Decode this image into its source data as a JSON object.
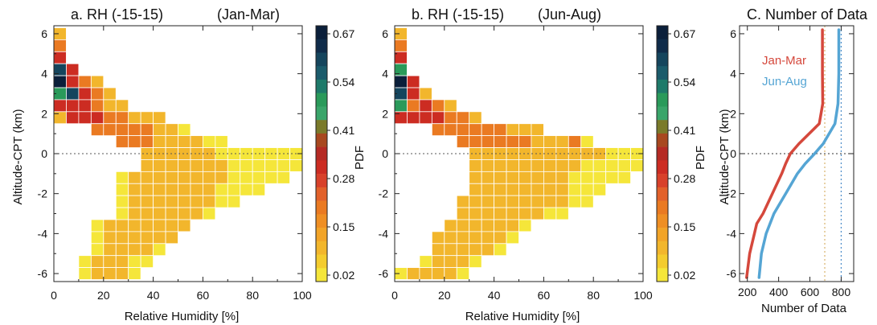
{
  "chart_data": [
    {
      "type": "heatmap",
      "title": "a. RH (-15-15)",
      "subtitle": "(Jan-Mar)",
      "xlabel": "Relative Humidity [%]",
      "ylabel": "Altitude-CPT (km)",
      "colorbar_label": "PDF",
      "xlim": [
        0,
        100
      ],
      "ylim": [
        -6.4,
        6.4
      ],
      "x_ticks": [
        0,
        20,
        40,
        60,
        80,
        100
      ],
      "y_ticks": [
        -6,
        -4,
        -2,
        0,
        2,
        4,
        6
      ],
      "reference_line": {
        "y": 0,
        "style": "dotted"
      },
      "bin_width_x": 5,
      "bin_height_y": 0.6,
      "row_y_values": [
        6.0,
        5.4,
        4.8,
        4.2,
        3.6,
        3.0,
        2.4,
        1.8,
        1.2,
        0.6,
        0.0,
        -0.6,
        -1.2,
        -1.8,
        -2.4,
        -3.0,
        -3.6,
        -4.2,
        -4.8,
        -5.4,
        -6.0
      ],
      "row_start_bin": [
        0,
        0,
        0,
        0,
        0,
        0,
        0,
        0,
        3,
        5,
        7,
        7,
        5,
        5,
        5,
        5,
        3,
        3,
        3,
        2,
        2
      ],
      "cells": [
        "B",
        "C",
        "D",
        "HD",
        "IDCB",
        "GHDCB",
        "DDDCBB",
        "BDDDCCBBB",
        "CCCCCBBA",
        "CCCBBBBAA",
        "BBBBBBAAAAAAA",
        "BBBBBBBAAAAAA",
        "ABBBBBBBBAAAAA",
        "ABBBBBBBAAAA",
        "ABBBBBBBAA",
        "ABBBBBBA",
        "ABBBBBBB",
        "ABBBBBB",
        "ABBBBA",
        "ABBBAA",
        "ABBBA"
      ],
      "color_levels": {
        "A": "#f5e63a",
        "B": "#f2b62c",
        "C": "#ea7a22",
        "D": "#cc2c22",
        "E": "#a8481f",
        "F": "#7a7a2a",
        "G": "#2a9a5a",
        "H": "#15455d",
        "I": "#0b1f3a"
      }
    },
    {
      "type": "heatmap",
      "title": "b. RH (-15-15)",
      "subtitle": "(Jun-Aug)",
      "xlabel": "Relative Humidity [%]",
      "ylabel": "",
      "colorbar_label": "PDF",
      "xlim": [
        0,
        100
      ],
      "ylim": [
        -6.4,
        6.4
      ],
      "x_ticks": [
        0,
        20,
        40,
        60,
        80,
        100
      ],
      "y_ticks": [
        -6,
        -4,
        -2,
        0,
        2,
        4,
        6
      ],
      "reference_line": {
        "y": 0,
        "style": "dotted"
      },
      "bin_width_x": 5,
      "bin_height_y": 0.6,
      "row_y_values": [
        6.0,
        5.4,
        4.8,
        4.2,
        3.6,
        3.0,
        2.4,
        1.8,
        1.2,
        0.6,
        0.0,
        -0.6,
        -1.2,
        -1.8,
        -2.4,
        -3.0,
        -3.6,
        -4.2,
        -4.8,
        -5.4,
        -6.0
      ],
      "row_start_bin": [
        0,
        0,
        0,
        0,
        0,
        0,
        0,
        0,
        3,
        5,
        6,
        6,
        6,
        6,
        5,
        5,
        4,
        3,
        3,
        2,
        0
      ],
      "cells": [
        "B",
        "C",
        "D",
        "G",
        "ID",
        "HDB",
        "GCDCB",
        "DDDDCCB",
        "CCCCCCBBB",
        "CCCCCCBBBCA",
        "BBBBBBBBBBBAAA",
        "BBBBBBBBBAAAAA",
        "BBBBBBBBAAAAA",
        "BBBBBBBBAAA",
        "BBBBBBBBBAA",
        "BBBBBBBAA",
        "BBBBBBA",
        "BBBBBBA",
        "BBBBBA",
        "ABBBA",
        "ABBBBA"
      ],
      "color_levels": {
        "A": "#f5e63a",
        "B": "#f2b62c",
        "C": "#ea7a22",
        "D": "#cc2c22",
        "E": "#a8481f",
        "F": "#7a7a2a",
        "G": "#2a9a5a",
        "H": "#15455d",
        "I": "#0b1f3a"
      }
    },
    {
      "type": "line",
      "title": "C. Number of Data",
      "xlabel": "Number of Data",
      "ylabel": "Altitude-CPT (km)",
      "xlim": [
        150,
        880
      ],
      "ylim": [
        -6.4,
        6.4
      ],
      "x_ticks": [
        200,
        400,
        600,
        800
      ],
      "y_ticks": [
        -6,
        -4,
        -2,
        0,
        2,
        4,
        6
      ],
      "reference_line": {
        "y": 0,
        "style": "dotted"
      },
      "vertical_reference_lines": [
        {
          "x": 695,
          "color": "#d9b36a"
        },
        {
          "x": 800,
          "color": "#4a8cc9"
        }
      ],
      "series": [
        {
          "name": "Jan-Mar",
          "color": "#d5483c",
          "y": [
            6.2,
            4.0,
            2.5,
            1.5,
            0.5,
            0.0,
            -0.5,
            -1.0,
            -2.0,
            -3.0,
            -3.5,
            -4.0,
            -5.0,
            -6.2
          ],
          "x": [
            680,
            680,
            682,
            660,
            530,
            475,
            445,
            420,
            360,
            300,
            260,
            245,
            215,
            195
          ]
        },
        {
          "name": "Jun-Aug",
          "color": "#55a5d4",
          "y": [
            6.2,
            4.0,
            2.5,
            1.5,
            0.5,
            0.0,
            -0.5,
            -1.0,
            -2.0,
            -3.0,
            -4.0,
            -5.0,
            -6.2
          ],
          "x": [
            785,
            785,
            780,
            760,
            685,
            630,
            570,
            520,
            445,
            370,
            320,
            290,
            275
          ]
        }
      ]
    }
  ],
  "colorbar": {
    "tick_labels": [
      "0.67",
      "0.54",
      "0.41",
      "0.28",
      "0.15",
      "0.02"
    ],
    "colors_top_to_bottom": [
      "#0b1f3a",
      "#102c4a",
      "#15455d",
      "#1b5b6b",
      "#1e7a6a",
      "#2a9a5a",
      "#3aa56a",
      "#7a7a2a",
      "#a8481f",
      "#b52a24",
      "#cc2c22",
      "#d8412a",
      "#e2612a",
      "#ea7a22",
      "#ef8f24",
      "#f2a428",
      "#f2b62c",
      "#f4cc2e",
      "#f5e63a"
    ]
  }
}
